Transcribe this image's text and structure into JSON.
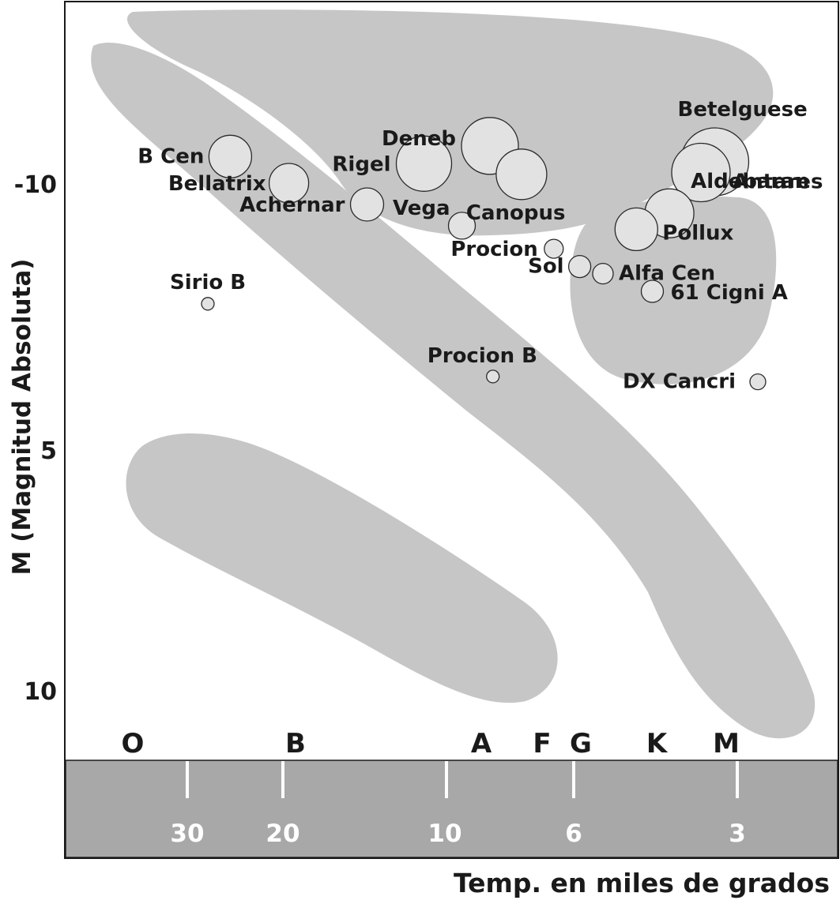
{
  "chart_data": {
    "type": "scatter",
    "xlabel": "Temp. en miles de grados",
    "ylabel": "M (Magnitud Absoluta)",
    "y_axis": {
      "reversed": true,
      "ticks": [
        "-10",
        "5",
        "10"
      ]
    },
    "temperature_ticks": [
      "30",
      "20",
      "10",
      "6",
      "3"
    ],
    "spectral_classes": [
      "O",
      "B",
      "A",
      "F",
      "G",
      "K",
      "M"
    ],
    "points": [
      {
        "name": "B Cen",
        "temp_k": 25000,
        "magnitude": -11.5,
        "radius": 27
      },
      {
        "name": "Deneb",
        "temp_k": 8400,
        "magnitude": -12.1,
        "radius": 36
      },
      {
        "name": "Rigel",
        "temp_k": 11000,
        "magnitude": -11.1,
        "radius": 35
      },
      {
        "name": "Betelguese",
        "temp_k": 3300,
        "magnitude": -11.2,
        "radius": 43
      },
      {
        "name": "Antares",
        "temp_k": 3500,
        "magnitude": -10.6,
        "radius": 37
      },
      {
        "name": "Canopus",
        "temp_k": 7400,
        "magnitude": -10.5,
        "radius": 32
      },
      {
        "name": "Bellatrix",
        "temp_k": 19500,
        "magnitude": -10.0,
        "radius": 25
      },
      {
        "name": "Achernar",
        "temp_k": 14000,
        "magnitude": -8.8,
        "radius": 21
      },
      {
        "name": "Aldebaran",
        "temp_k": 4000,
        "magnitude": -8.3,
        "radius": 31
      },
      {
        "name": "Pollux",
        "temp_k": 4600,
        "magnitude": -7.4,
        "radius": 27
      },
      {
        "name": "Vega",
        "temp_k": 9400,
        "magnitude": -7.6,
        "radius": 17
      },
      {
        "name": "Procion",
        "temp_k": 6500,
        "magnitude": -6.3,
        "radius": 12
      },
      {
        "name": "Sol",
        "temp_k": 5850,
        "magnitude": -5.3,
        "radius": 14
      },
      {
        "name": "Alfa Cen",
        "temp_k": 5300,
        "magnitude": -4.9,
        "radius": 13
      },
      {
        "name": "61 Cigni A",
        "temp_k": 4300,
        "magnitude": -3.9,
        "radius": 14
      },
      {
        "name": "Sirio B",
        "temp_k": 27500,
        "magnitude": -3.2,
        "radius": 8
      },
      {
        "name": "Procion B",
        "temp_k": 8300,
        "magnitude": 0.9,
        "radius": 8
      },
      {
        "name": "DX Cancri",
        "temp_k": 2750,
        "magnitude": 1.2,
        "radius": 10
      }
    ]
  }
}
